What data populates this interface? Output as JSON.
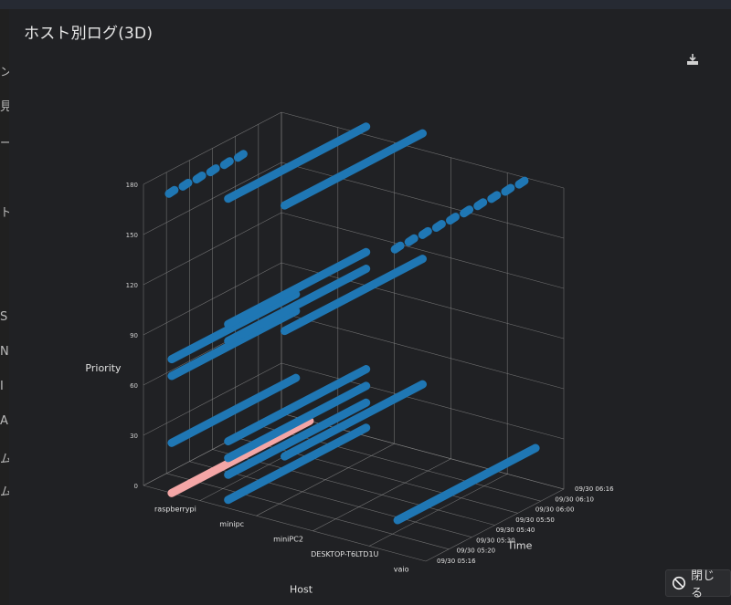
{
  "modal": {
    "title": "ホスト別ログ(3D)",
    "close_label": "閉じる"
  },
  "background": {
    "top_value": "180",
    "side_chars": [
      "ン",
      "見",
      "ー",
      "ト",
      "S",
      "N",
      "I",
      "A",
      "ム"
    ]
  },
  "icons": {
    "download": "download-icon",
    "close": "no-entry-icon"
  },
  "colors": {
    "series_blue": "#1f77b4",
    "highlight": "#f4a6a6",
    "grid": "#8a8a8a"
  },
  "chart_data": {
    "type": "scatter3d",
    "title": "",
    "xlabel": "Host",
    "ylabel": "Time",
    "zlabel": "Priority",
    "host_categories": [
      "raspberrypi",
      "minipc",
      "miniPC2",
      "DESKTOP-T6LTD1U",
      "vaio"
    ],
    "time_ticks": [
      "09/30 05:16",
      "09/30 05:20",
      "09/30 05:30",
      "09/30 05:40",
      "09/30 05:50",
      "09/30 06:00",
      "09/30 06:10",
      "09/30 06:16"
    ],
    "priority_ticks": [
      0,
      30,
      60,
      90,
      120,
      150,
      180
    ],
    "zlim": [
      0,
      180
    ],
    "series": [
      {
        "host": "raspberrypi",
        "priority": 180,
        "style": "points",
        "times": [
          "05:16",
          "05:22",
          "05:28",
          "05:34",
          "05:40",
          "05:46"
        ]
      },
      {
        "host": "raspberrypi",
        "priority": 80,
        "style": "line",
        "from": "05:16",
        "to": "06:10"
      },
      {
        "host": "raspberrypi",
        "priority": 70,
        "style": "line",
        "from": "05:16",
        "to": "06:10"
      },
      {
        "host": "raspberrypi",
        "priority": 30,
        "style": "line",
        "from": "05:16",
        "to": "06:10"
      },
      {
        "host": "raspberrypi",
        "priority": 0,
        "style": "line",
        "from": "05:16",
        "to": "06:16",
        "highlight": true
      },
      {
        "host": "minipc",
        "priority": 185,
        "style": "line",
        "from": "05:16",
        "to": "06:16"
      },
      {
        "host": "minipc",
        "priority": 110,
        "style": "line",
        "from": "05:16",
        "to": "06:16"
      },
      {
        "host": "minipc",
        "priority": 100,
        "style": "line",
        "from": "05:16",
        "to": "06:16"
      },
      {
        "host": "minipc",
        "priority": 40,
        "style": "line",
        "from": "05:16",
        "to": "06:16"
      },
      {
        "host": "minipc",
        "priority": 30,
        "style": "line",
        "from": "05:16",
        "to": "06:16"
      },
      {
        "host": "minipc",
        "priority": 20,
        "style": "line",
        "from": "05:16",
        "to": "06:16"
      },
      {
        "host": "minipc",
        "priority": 5,
        "style": "line",
        "from": "05:16",
        "to": "06:16"
      },
      {
        "host": "miniPC2",
        "priority": 190,
        "style": "line",
        "from": "05:16",
        "to": "06:16"
      },
      {
        "host": "miniPC2",
        "priority": 115,
        "style": "line",
        "from": "05:16",
        "to": "06:16"
      },
      {
        "host": "miniPC2",
        "priority": 40,
        "style": "line",
        "from": "05:16",
        "to": "06:16"
      },
      {
        "host": "vaio",
        "priority": 183,
        "style": "points",
        "times": [
          "05:16",
          "05:22",
          "05:28",
          "05:34",
          "05:40",
          "05:46",
          "05:52",
          "05:58",
          "06:04",
          "06:10"
        ]
      },
      {
        "host": "vaio",
        "priority": 20,
        "style": "line",
        "from": "05:16",
        "to": "06:16"
      }
    ]
  }
}
